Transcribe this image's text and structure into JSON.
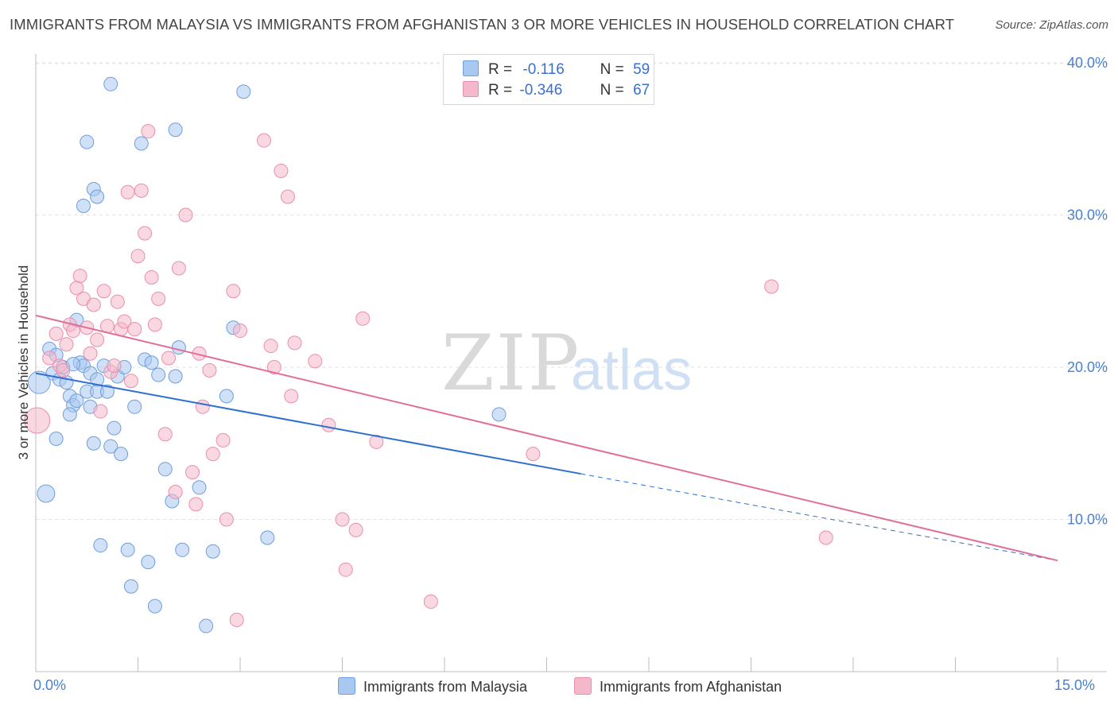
{
  "header": {
    "title": "IMMIGRANTS FROM MALAYSIA VS IMMIGRANTS FROM AFGHANISTAN 3 OR MORE VEHICLES IN HOUSEHOLD CORRELATION CHART",
    "source": "Source: ZipAtlas.com"
  },
  "watermark": {
    "zip": "ZIP",
    "atlas": "atlas"
  },
  "legend": {
    "rows": [
      {
        "r_label": "R =",
        "r_value": "-0.116",
        "n_label": "N =",
        "n_value": "59",
        "color": "#a9c8f0"
      },
      {
        "r_label": "R =",
        "r_value": "-0.346",
        "n_label": "N =",
        "n_value": "67",
        "color": "#f5b8cb"
      }
    ]
  },
  "bottom_legend": {
    "items": [
      {
        "label": "Immigrants from Malaysia",
        "color": "#a9c8f0"
      },
      {
        "label": "Immigrants from Afghanistan",
        "color": "#f5b8cb"
      }
    ]
  },
  "chart_data": {
    "type": "scatter",
    "title": "IMMIGRANTS FROM MALAYSIA VS IMMIGRANTS FROM AFGHANISTAN 3 OR MORE VEHICLES IN HOUSEHOLD CORRELATION CHART",
    "xlabel": "",
    "ylabel": "3 or more Vehicles in Household",
    "xlim": [
      0,
      15
    ],
    "ylim": [
      0,
      40
    ],
    "x_tick_labels": [
      "0.0%",
      "15.0%"
    ],
    "y_ticks": [
      10,
      20,
      30,
      40
    ],
    "y_tick_labels": [
      "10.0%",
      "20.0%",
      "30.0%",
      "40.0%"
    ],
    "grid": true,
    "legend_placement": "top-center",
    "series": [
      {
        "name": "Immigrants from Malaysia",
        "color": "#a9c8f0",
        "stroke": "#6f9edc",
        "trend_color": "#2f6fd0",
        "trend": {
          "x0": 0.0,
          "y0": 19.6,
          "x1": 8.0,
          "y1": 13.0,
          "dash_to_x": 15.0,
          "dash_to_y": 7.3
        },
        "points": [
          [
            0.05,
            19.0
          ],
          [
            0.15,
            11.7
          ],
          [
            0.2,
            21.2
          ],
          [
            0.25,
            19.6
          ],
          [
            0.3,
            20.8
          ],
          [
            0.35,
            19.2
          ],
          [
            0.4,
            20.0
          ],
          [
            0.45,
            19.0
          ],
          [
            0.5,
            18.1
          ],
          [
            0.55,
            17.5
          ],
          [
            0.6,
            23.1
          ],
          [
            0.65,
            20.3
          ],
          [
            0.7,
            20.1
          ],
          [
            0.75,
            18.4
          ],
          [
            0.8,
            19.6
          ],
          [
            0.85,
            15.0
          ],
          [
            0.9,
            18.4
          ],
          [
            0.95,
            8.3
          ],
          [
            0.3,
            15.3
          ],
          [
            0.5,
            16.9
          ],
          [
            0.55,
            20.2
          ],
          [
            0.6,
            17.8
          ],
          [
            0.7,
            30.6
          ],
          [
            0.75,
            34.8
          ],
          [
            0.8,
            17.4
          ],
          [
            0.85,
            31.7
          ],
          [
            0.9,
            31.2
          ],
          [
            1.0,
            20.1
          ],
          [
            1.05,
            18.4
          ],
          [
            1.1,
            14.8
          ],
          [
            1.15,
            16.0
          ],
          [
            1.2,
            19.4
          ],
          [
            1.25,
            14.3
          ],
          [
            1.3,
            20.0
          ],
          [
            1.35,
            8.0
          ],
          [
            1.4,
            5.6
          ],
          [
            1.45,
            17.4
          ],
          [
            1.55,
            34.7
          ],
          [
            1.6,
            20.5
          ],
          [
            1.65,
            7.2
          ],
          [
            1.7,
            20.3
          ],
          [
            1.75,
            4.3
          ],
          [
            1.8,
            19.5
          ],
          [
            1.9,
            13.3
          ],
          [
            2.0,
            11.2
          ],
          [
            2.05,
            19.4
          ],
          [
            2.1,
            21.3
          ],
          [
            2.15,
            8.0
          ],
          [
            2.4,
            12.1
          ],
          [
            2.6,
            7.9
          ],
          [
            2.8,
            18.1
          ],
          [
            2.9,
            22.6
          ],
          [
            2.5,
            3.0
          ],
          [
            3.05,
            38.1
          ],
          [
            3.4,
            8.8
          ],
          [
            1.1,
            38.6
          ],
          [
            2.05,
            35.6
          ],
          [
            6.8,
            16.9
          ],
          [
            0.9,
            19.2
          ]
        ]
      },
      {
        "name": "Immigrants from Afghanistan",
        "color": "#f5b8cb",
        "stroke": "#ea8fac",
        "trend_color": "#e07098",
        "trend": {
          "x0": 0.0,
          "y0": 23.4,
          "x1": 15.0,
          "y1": 7.3
        },
        "points": [
          [
            0.02,
            16.5
          ],
          [
            0.2,
            20.6
          ],
          [
            0.3,
            22.2
          ],
          [
            0.35,
            20.1
          ],
          [
            0.4,
            19.8
          ],
          [
            0.45,
            21.5
          ],
          [
            0.5,
            22.8
          ],
          [
            0.55,
            22.4
          ],
          [
            0.6,
            25.2
          ],
          [
            0.65,
            26.0
          ],
          [
            0.7,
            24.5
          ],
          [
            0.75,
            22.6
          ],
          [
            0.8,
            20.9
          ],
          [
            0.85,
            24.1
          ],
          [
            0.9,
            21.8
          ],
          [
            0.95,
            17.1
          ],
          [
            1.0,
            25.0
          ],
          [
            1.05,
            22.7
          ],
          [
            1.1,
            19.7
          ],
          [
            1.15,
            20.1
          ],
          [
            1.2,
            24.3
          ],
          [
            1.25,
            22.5
          ],
          [
            1.3,
            23.0
          ],
          [
            1.35,
            31.5
          ],
          [
            1.4,
            19.1
          ],
          [
            1.45,
            22.5
          ],
          [
            1.5,
            27.3
          ],
          [
            1.55,
            31.6
          ],
          [
            1.6,
            28.8
          ],
          [
            1.65,
            35.5
          ],
          [
            1.7,
            25.9
          ],
          [
            1.75,
            22.8
          ],
          [
            1.8,
            24.5
          ],
          [
            1.9,
            15.6
          ],
          [
            1.95,
            20.6
          ],
          [
            2.05,
            11.8
          ],
          [
            2.1,
            26.5
          ],
          [
            2.2,
            30.0
          ],
          [
            2.3,
            13.1
          ],
          [
            2.35,
            11.0
          ],
          [
            2.4,
            20.9
          ],
          [
            2.45,
            17.4
          ],
          [
            2.55,
            19.8
          ],
          [
            2.6,
            14.3
          ],
          [
            2.75,
            15.2
          ],
          [
            2.8,
            10.0
          ],
          [
            2.9,
            25.0
          ],
          [
            2.95,
            3.4
          ],
          [
            3.0,
            22.4
          ],
          [
            3.35,
            34.9
          ],
          [
            3.45,
            21.4
          ],
          [
            3.5,
            20.0
          ],
          [
            3.6,
            32.9
          ],
          [
            3.7,
            31.2
          ],
          [
            3.75,
            18.1
          ],
          [
            3.8,
            21.6
          ],
          [
            4.1,
            20.4
          ],
          [
            4.3,
            16.2
          ],
          [
            4.5,
            10.0
          ],
          [
            4.55,
            6.7
          ],
          [
            4.7,
            9.3
          ],
          [
            4.8,
            23.2
          ],
          [
            5.0,
            15.1
          ],
          [
            5.8,
            4.6
          ],
          [
            7.3,
            14.3
          ],
          [
            10.8,
            25.3
          ],
          [
            11.6,
            8.8
          ]
        ]
      }
    ]
  }
}
